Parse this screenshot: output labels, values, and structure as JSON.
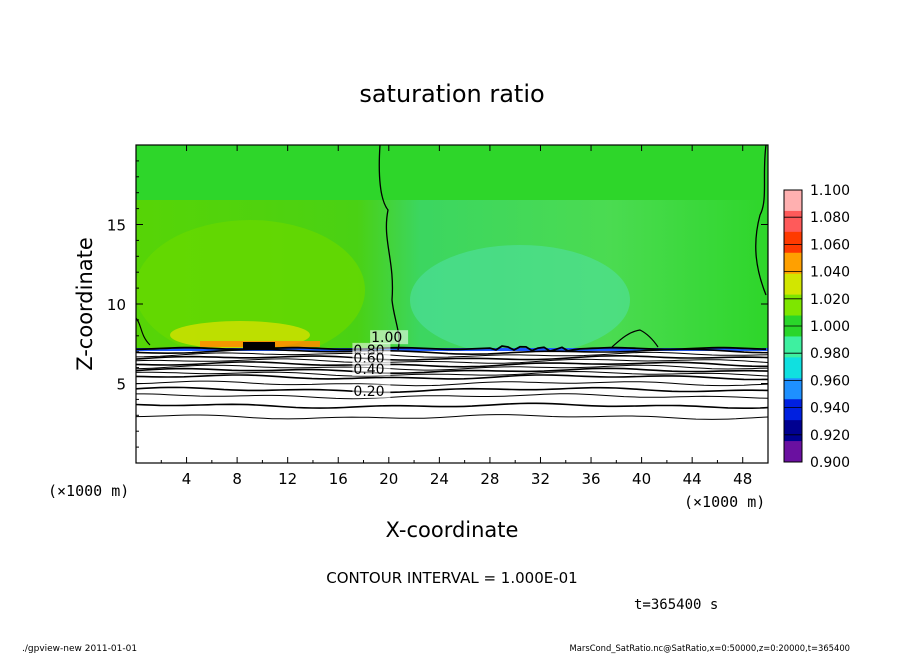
{
  "chart_data": {
    "type": "heatmap",
    "title": "saturation ratio",
    "xlabel": "X-coordinate",
    "ylabel": "Z-coordinate",
    "x_unit": "(×1000 m)",
    "z_unit": "(×1000 m)",
    "xlim": [
      0,
      50
    ],
    "ylim": [
      0,
      20
    ],
    "x_ticks": [
      4,
      8,
      12,
      16,
      20,
      24,
      28,
      32,
      36,
      40,
      44,
      48
    ],
    "y_ticks": [
      5,
      10,
      15
    ],
    "contour_interval_text": "CONTOUR INTERVAL = 1.000E-01",
    "time_text": "t=365400 s",
    "colorbar": {
      "levels": [
        "1.100",
        "1.080",
        "1.060",
        "1.040",
        "1.020",
        "1.000",
        "0.980",
        "0.960",
        "0.940",
        "0.920",
        "0.900"
      ],
      "colors": [
        "#ffb0b0",
        "#ff5a5a",
        "#ff3a00",
        "#ffa000",
        "#d2e600",
        "#7ee600",
        "#2ad62a",
        "#3ef0a0",
        "#10e0e0",
        "#1e90ff",
        "#0020e0",
        "#000090",
        "#6a10a0"
      ]
    },
    "contour_labels": [
      {
        "text": "1.00",
        "x": 18.6,
        "z": 7.6
      },
      {
        "text": "0.80",
        "x": 17.2,
        "z": 6.8
      },
      {
        "text": "0.60",
        "x": 17.2,
        "z": 6.3
      },
      {
        "text": "0.40",
        "x": 17.2,
        "z": 5.6
      },
      {
        "text": "0.20",
        "x": 17.2,
        "z": 4.2
      }
    ],
    "saturation_top_z": 7.2,
    "contour_levels_z": [
      7.0,
      6.8,
      6.6,
      6.4,
      6.2,
      6.0,
      5.8,
      5.6,
      5.4,
      5.0,
      4.6,
      4.2,
      3.6,
      2.9
    ]
  },
  "footer": {
    "left": "./gpview-new   2011-01-01",
    "right": "MarsCond_SatRatio.nc@SatRatio,x=0:50000,z=0:20000,t=365400"
  }
}
